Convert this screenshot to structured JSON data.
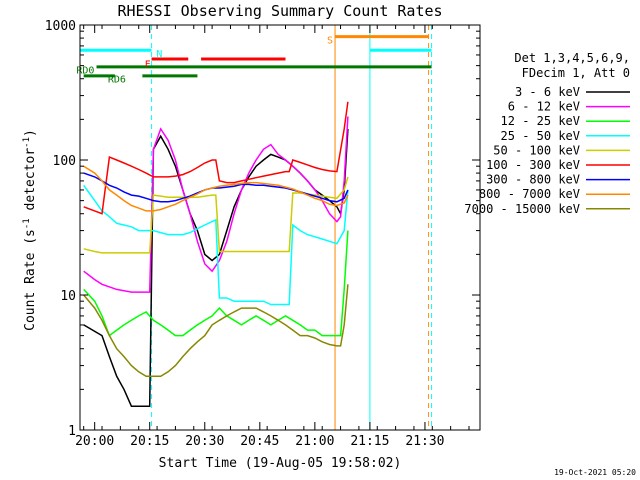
{
  "chart_data": {
    "type": "line",
    "title": "RHESSI Observing Summary Count Rates",
    "xlabel": "Start Time (19-Aug-05 19:58:02)",
    "ylabel_main": "Count Rate (s",
    "ylabel_sup": "-1",
    "ylabel_mid": " detector",
    "ylabel_sup2": "-1",
    "ylabel_end": ")",
    "ylog": true,
    "ylim": [
      1,
      1000
    ],
    "xlim_min": [
      -2,
      107
    ],
    "x_ticks": [
      {
        "min": 2,
        "label": "20:00"
      },
      {
        "min": 17,
        "label": "20:15"
      },
      {
        "min": 32,
        "label": "20:30"
      },
      {
        "min": 47,
        "label": "20:45"
      },
      {
        "min": 62,
        "label": "21:00"
      },
      {
        "min": 77,
        "label": "21:15"
      },
      {
        "min": 92,
        "label": "21:30"
      }
    ],
    "y_ticks": [
      {
        "v": 1,
        "label": "1"
      },
      {
        "v": 10,
        "label": "10"
      },
      {
        "v": 100,
        "label": "100"
      },
      {
        "v": 1000,
        "label": "1000"
      }
    ],
    "legend_header": [
      "Det 1,3,4,5,6,9,",
      "FDecim 1, Att 0"
    ],
    "series": [
      {
        "name": "3 - 6 keV",
        "color": "#000000",
        "x": [
          -1,
          4,
          6,
          8,
          10,
          12,
          14,
          16,
          17,
          18,
          20,
          22,
          24,
          26,
          28,
          30,
          32,
          34,
          36,
          38,
          40,
          42,
          44,
          46,
          48,
          50,
          52,
          54,
          56,
          58,
          60,
          62,
          64,
          66,
          68,
          69,
          70,
          71
        ],
        "y": [
          6,
          5,
          3.5,
          2.5,
          2,
          1.5,
          1.5,
          1.5,
          1.5,
          120,
          150,
          120,
          90,
          60,
          40,
          30,
          20,
          18,
          20,
          30,
          45,
          60,
          75,
          90,
          100,
          110,
          105,
          100,
          90,
          80,
          70,
          60,
          55,
          50,
          45,
          40,
          60,
          170
        ]
      },
      {
        "name": "6 - 12 keV",
        "color": "#ff00ff",
        "x": [
          -1,
          2,
          4,
          8,
          12,
          16,
          17,
          18,
          20,
          22,
          24,
          26,
          28,
          30,
          32,
          34,
          36,
          38,
          40,
          42,
          44,
          46,
          48,
          50,
          52,
          54,
          56,
          58,
          60,
          62,
          64,
          66,
          68,
          69,
          70,
          71
        ],
        "y": [
          15,
          13,
          12,
          11,
          10.5,
          10.5,
          10.5,
          120,
          170,
          140,
          100,
          60,
          40,
          25,
          17,
          15,
          18,
          25,
          40,
          60,
          80,
          100,
          120,
          130,
          110,
          100,
          90,
          80,
          70,
          60,
          50,
          40,
          35,
          38,
          70,
          210
        ]
      },
      {
        "name": "12 - 25 keV",
        "color": "#00ff00",
        "x": [
          -1,
          2,
          4,
          6,
          8,
          10,
          12,
          14,
          16,
          18,
          20,
          22,
          24,
          26,
          28,
          30,
          32,
          34,
          36,
          38,
          40,
          42,
          44,
          46,
          48,
          50,
          52,
          54,
          56,
          58,
          60,
          62,
          64,
          66,
          68,
          69,
          70,
          71
        ],
        "y": [
          11,
          9,
          7,
          5,
          5.5,
          6,
          6.5,
          7,
          7.5,
          6.5,
          6,
          5.5,
          5,
          5,
          5.5,
          6,
          6.5,
          7,
          8,
          7,
          6.5,
          6,
          6.5,
          7,
          6.5,
          6,
          6.5,
          7,
          6.5,
          6,
          5.5,
          5.5,
          5,
          5,
          5,
          5,
          11,
          30
        ]
      },
      {
        "name": "25 - 50 keV",
        "color": "#00ffff",
        "x": [
          -1,
          2,
          4,
          6,
          8,
          10,
          12,
          14,
          16,
          17,
          18,
          20,
          22,
          24,
          26,
          28,
          30,
          32,
          34,
          35,
          36,
          38,
          40,
          42,
          44,
          46,
          48,
          50,
          52,
          54,
          55,
          56,
          58,
          60,
          62,
          64,
          66,
          68,
          70,
          71
        ],
        "y": [
          65,
          50,
          42,
          38,
          34,
          33,
          32,
          30,
          30,
          30,
          30,
          29,
          28,
          28,
          28,
          29,
          31,
          33,
          35,
          36,
          9.5,
          9.5,
          9,
          9,
          9,
          9,
          9,
          8.5,
          8.5,
          8.5,
          8.5,
          33,
          30,
          28,
          27,
          26,
          25,
          24,
          30,
          60
        ]
      },
      {
        "name": "50 - 100 keV",
        "color": "#cccc00",
        "x": [
          -1,
          2,
          4,
          6,
          8,
          10,
          12,
          14,
          16,
          17,
          18,
          20,
          22,
          24,
          26,
          28,
          30,
          32,
          34,
          35,
          36,
          38,
          40,
          42,
          44,
          46,
          48,
          50,
          52,
          54,
          55,
          56,
          58,
          60,
          62,
          64,
          66,
          68,
          70,
          71
        ],
        "y": [
          22,
          21,
          20.5,
          20.5,
          20.5,
          20.5,
          20.5,
          20.5,
          20.5,
          20.5,
          55,
          54,
          53,
          53,
          53,
          53,
          53,
          54,
          55,
          55,
          21,
          21,
          21,
          21,
          21,
          21,
          21,
          21,
          21,
          21,
          21,
          57,
          57,
          56,
          55,
          54,
          53,
          52,
          60,
          75
        ]
      },
      {
        "name": "100 - 300 keV",
        "color": "#ff0000",
        "x": [
          -1,
          2,
          4,
          6,
          8,
          10,
          12,
          14,
          16,
          18,
          20,
          22,
          24,
          26,
          28,
          30,
          32,
          34,
          35,
          36,
          38,
          40,
          42,
          44,
          46,
          48,
          50,
          52,
          54,
          55,
          56,
          58,
          60,
          62,
          64,
          66,
          68,
          70,
          71
        ],
        "y": [
          45,
          42,
          40,
          105,
          100,
          95,
          90,
          85,
          80,
          75,
          75,
          75,
          76,
          78,
          82,
          88,
          95,
          100,
          100,
          70,
          68,
          68,
          70,
          72,
          74,
          76,
          78,
          80,
          82,
          82,
          100,
          96,
          92,
          88,
          85,
          83,
          82,
          170,
          270
        ]
      },
      {
        "name": "300 - 800 keV",
        "color": "#0000ff",
        "x": [
          -1,
          2,
          4,
          6,
          8,
          10,
          12,
          14,
          16,
          18,
          20,
          22,
          24,
          26,
          28,
          30,
          32,
          34,
          36,
          38,
          40,
          42,
          44,
          46,
          48,
          50,
          52,
          54,
          56,
          58,
          60,
          62,
          64,
          66,
          68,
          70,
          71
        ],
        "y": [
          80,
          75,
          70,
          65,
          62,
          58,
          55,
          54,
          52,
          50,
          49,
          49,
          50,
          52,
          54,
          57,
          60,
          62,
          62,
          63,
          64,
          66,
          66,
          65,
          65,
          64,
          63,
          62,
          60,
          58,
          56,
          54,
          52,
          50,
          49,
          52,
          60
        ]
      },
      {
        "name": "800 - 7000 keV",
        "color": "#ff8800",
        "x": [
          -1,
          2,
          4,
          6,
          8,
          10,
          12,
          14,
          16,
          18,
          20,
          22,
          24,
          26,
          28,
          30,
          32,
          34,
          36,
          38,
          40,
          42,
          44,
          46,
          48,
          50,
          52,
          54,
          56,
          58,
          60,
          62,
          64,
          66,
          68,
          70,
          71
        ],
        "y": [
          90,
          80,
          70,
          60,
          55,
          50,
          46,
          44,
          42,
          42,
          43,
          45,
          47,
          50,
          53,
          56,
          60,
          62,
          64,
          65,
          66,
          67,
          68,
          68,
          67,
          66,
          65,
          63,
          61,
          58,
          55,
          52,
          50,
          47,
          46,
          48,
          55
        ]
      },
      {
        "name": "7000 - 15000 keV",
        "color": "#888800",
        "x": [
          -1,
          2,
          4,
          6,
          8,
          10,
          12,
          14,
          16,
          18,
          20,
          22,
          24,
          26,
          28,
          30,
          32,
          34,
          36,
          38,
          40,
          42,
          44,
          46,
          48,
          50,
          52,
          54,
          56,
          58,
          60,
          62,
          64,
          66,
          68,
          69,
          70,
          71
        ],
        "y": [
          10,
          8,
          6.5,
          5,
          4,
          3.5,
          3,
          2.7,
          2.5,
          2.5,
          2.5,
          2.7,
          3,
          3.5,
          4,
          4.5,
          5,
          6,
          6.5,
          7,
          7.5,
          8,
          8,
          8,
          7.5,
          7,
          6.5,
          6,
          5.5,
          5,
          5,
          4.8,
          4.5,
          4.3,
          4.2,
          4.2,
          6,
          12
        ]
      }
    ],
    "vlines": [
      {
        "min": 17.5,
        "color": "#00ffff",
        "dash": true
      },
      {
        "min": 67.5,
        "color": "#ff8800",
        "dash": false
      },
      {
        "min": 77.0,
        "color": "#00ffff",
        "dash": false
      },
      {
        "min": 93.0,
        "color": "#ff8800",
        "dash": true
      },
      {
        "min": 93.8,
        "color": "#00ffff",
        "dash": true
      }
    ],
    "status_bars": [
      {
        "label": "N",
        "color": "#00ffff",
        "y": 650,
        "segments": [
          [
            -2,
            17.5
          ],
          [
            77,
            93.8
          ]
        ]
      },
      {
        "label": "S",
        "color": "#ff8800",
        "y": 820,
        "segments": [
          [
            67.5,
            93
          ]
        ]
      },
      {
        "label": "F",
        "color": "#ff0000",
        "y": 560,
        "segments": [
          [
            17.5,
            27.5
          ],
          [
            31,
            54
          ]
        ]
      },
      {
        "label": "RD0",
        "color": "#007700",
        "y": 490,
        "segments": [
          [
            2.5,
            93.8
          ]
        ]
      },
      {
        "label": "RD6",
        "color": "#007700",
        "y": 420,
        "segments": [
          [
            -1,
            7.5
          ],
          [
            15,
            30
          ]
        ]
      }
    ],
    "status_labels": [
      {
        "text": "N",
        "color": "#00ffff",
        "min": 18.8,
        "y": 620
      },
      {
        "text": "F",
        "color": "#ff0000",
        "min": 15.6,
        "y": 520
      },
      {
        "text": "S",
        "color": "#ff8800",
        "min": 65.3,
        "y": 780
      },
      {
        "text": "RD0",
        "color": "#007700",
        "min": -3.0,
        "y": 470
      },
      {
        "text": "RD6",
        "color": "#007700",
        "min": 5.6,
        "y": 400
      }
    ],
    "footer_date": "19-Oct-2021 05:20"
  }
}
